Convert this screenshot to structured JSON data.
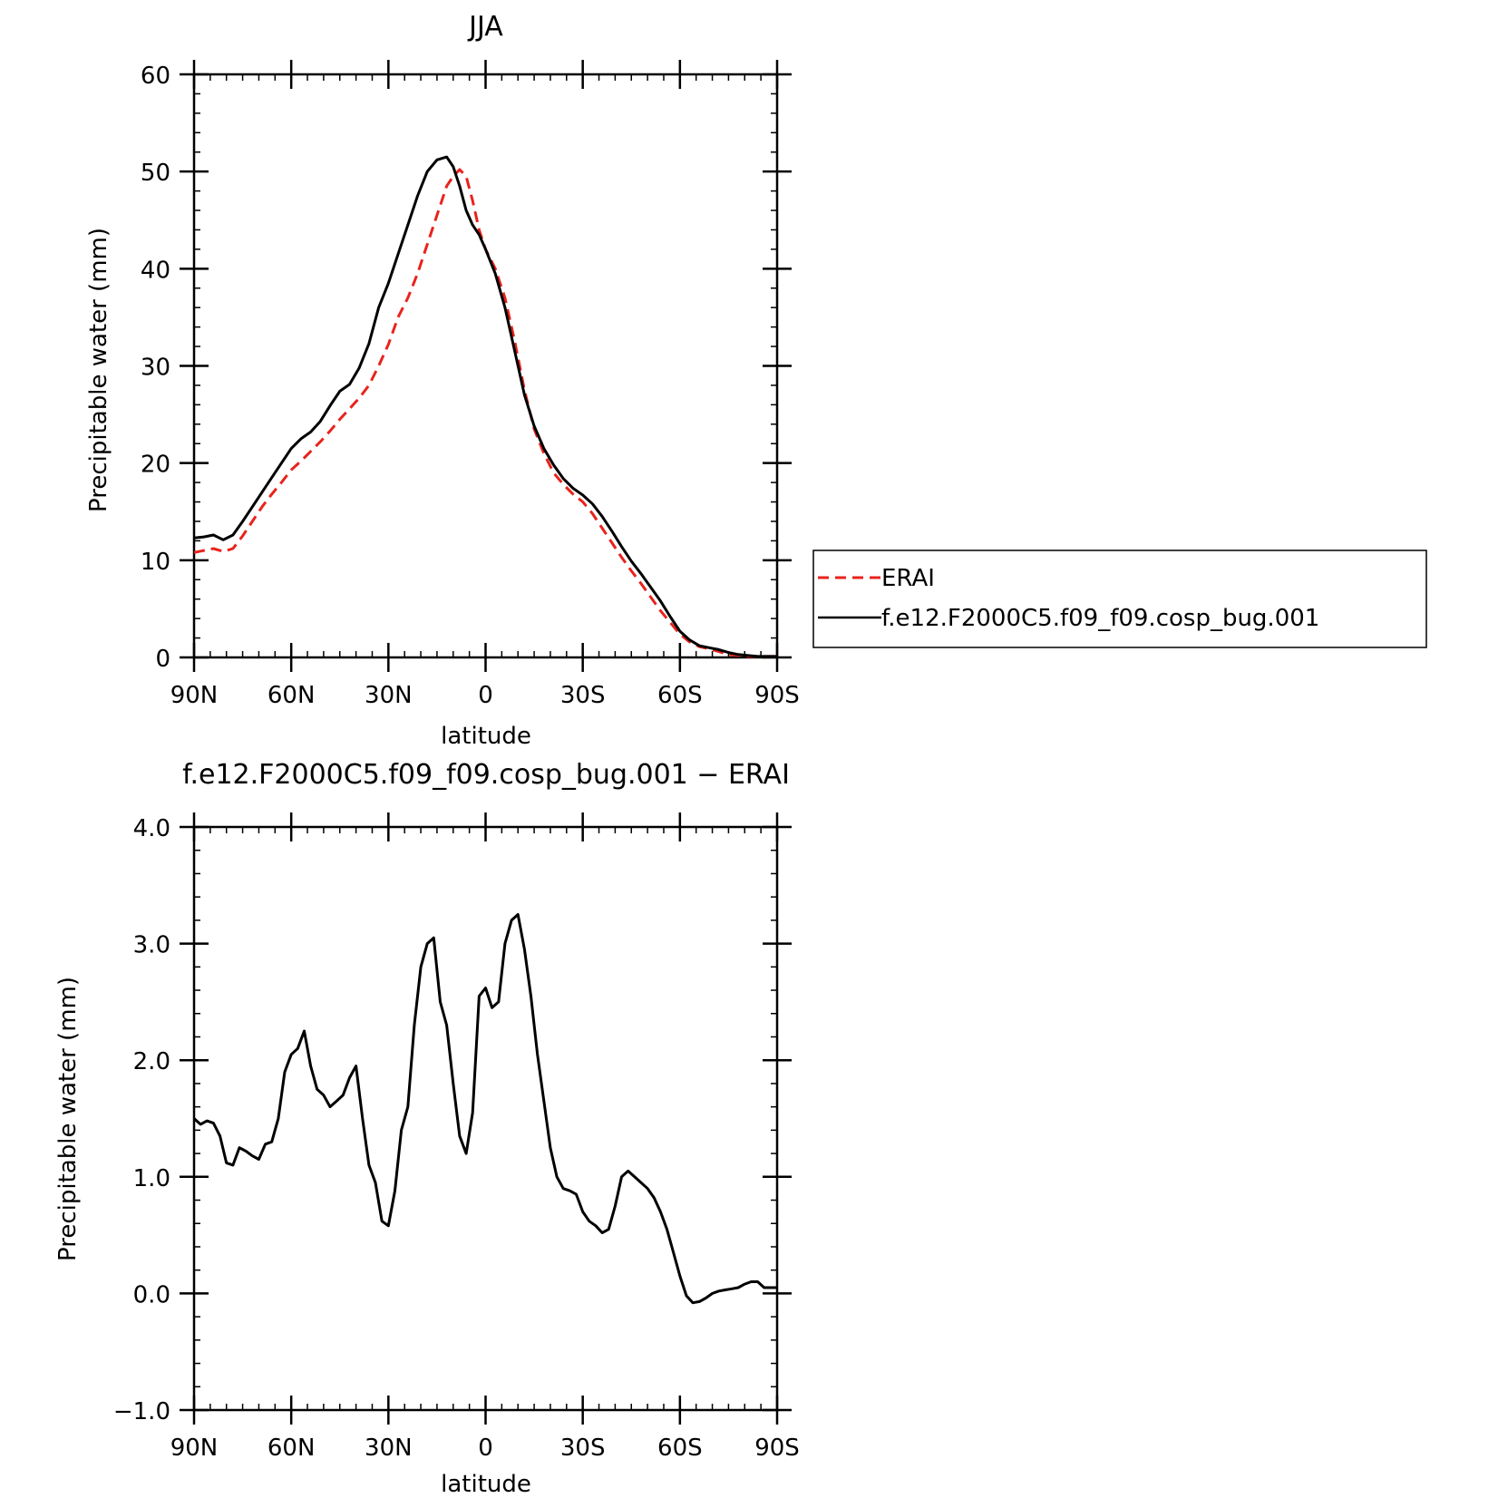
{
  "chart_data": [
    {
      "type": "line",
      "title": "JJA",
      "xlabel": "latitude",
      "ylabel": "Precipitable water (mm)",
      "xlim": [
        90,
        -90
      ],
      "ylim": [
        0,
        60
      ],
      "xticks": [
        {
          "value": 90,
          "label": "90N"
        },
        {
          "value": 60,
          "label": "60N"
        },
        {
          "value": 30,
          "label": "30N"
        },
        {
          "value": 0,
          "label": "0"
        },
        {
          "value": -30,
          "label": "30S"
        },
        {
          "value": -60,
          "label": "60S"
        },
        {
          "value": -90,
          "label": "90S"
        }
      ],
      "yticks": [
        {
          "value": 0,
          "label": "0"
        },
        {
          "value": 10,
          "label": "10"
        },
        {
          "value": 20,
          "label": "20"
        },
        {
          "value": 30,
          "label": "30"
        },
        {
          "value": 40,
          "label": "40"
        },
        {
          "value": 50,
          "label": "50"
        },
        {
          "value": 60,
          "label": "60"
        }
      ],
      "series": [
        {
          "name": "ERAI",
          "color": "#e8231c",
          "style": "dashed",
          "x": [
            90,
            87,
            84,
            81,
            78,
            75,
            72,
            69,
            66,
            63,
            60,
            57,
            54,
            51,
            48,
            45,
            42,
            39,
            36,
            33,
            30,
            27,
            24,
            21,
            18,
            15,
            12,
            10,
            8,
            6,
            4,
            2,
            0,
            -3,
            -6,
            -9,
            -12,
            -15,
            -18,
            -21,
            -24,
            -27,
            -30,
            -33,
            -36,
            -39,
            -42,
            -45,
            -48,
            -51,
            -54,
            -57,
            -60,
            -63,
            -66,
            -69,
            -72,
            -75,
            -78,
            -81,
            -84,
            -87,
            -90
          ],
          "y": [
            10.8,
            11.0,
            11.2,
            10.9,
            11.2,
            12.5,
            14.0,
            15.5,
            16.8,
            18.0,
            19.3,
            20.2,
            21.2,
            22.2,
            23.3,
            24.5,
            25.6,
            26.7,
            28.0,
            30.0,
            32.2,
            35.0,
            37.0,
            39.5,
            42.5,
            45.5,
            48.5,
            49.5,
            50.2,
            49.5,
            47.0,
            44.0,
            42.0,
            40.0,
            37.0,
            32.5,
            27.5,
            23.5,
            21.0,
            19.0,
            17.8,
            16.8,
            16.0,
            14.8,
            13.3,
            11.8,
            10.3,
            8.9,
            7.6,
            6.2,
            4.8,
            3.6,
            2.4,
            1.6,
            1.1,
            0.9,
            0.6,
            0.3,
            0.2,
            0.1,
            0.1,
            0.1,
            0.1
          ]
        },
        {
          "name": "f.e12.F2000C5.f09_f09.cosp_bug.001",
          "color": "#000000",
          "style": "solid",
          "x": [
            90,
            87,
            84,
            81,
            78,
            75,
            72,
            69,
            66,
            63,
            60,
            57,
            54,
            51,
            48,
            45,
            42,
            39,
            36,
            33,
            30,
            27,
            24,
            21,
            18,
            15,
            12,
            10,
            8,
            6,
            4,
            2,
            0,
            -3,
            -6,
            -9,
            -12,
            -15,
            -18,
            -21,
            -24,
            -27,
            -30,
            -33,
            -36,
            -39,
            -42,
            -45,
            -48,
            -51,
            -54,
            -57,
            -60,
            -63,
            -66,
            -69,
            -72,
            -75,
            -78,
            -81,
            -84,
            -87,
            -90
          ],
          "y": [
            12.3,
            12.4,
            12.6,
            12.1,
            12.6,
            14.0,
            15.5,
            17.0,
            18.5,
            20.0,
            21.5,
            22.5,
            23.2,
            24.3,
            25.9,
            27.4,
            28.1,
            29.8,
            32.3,
            36.0,
            38.5,
            41.5,
            44.5,
            47.5,
            50.0,
            51.2,
            51.5,
            50.5,
            48.5,
            46.0,
            44.5,
            43.5,
            42.0,
            39.5,
            36.0,
            31.5,
            27.0,
            23.8,
            21.5,
            19.8,
            18.4,
            17.4,
            16.7,
            15.8,
            14.5,
            13.0,
            11.4,
            9.9,
            8.6,
            7.2,
            5.8,
            4.2,
            2.7,
            1.8,
            1.2,
            1.0,
            0.8,
            0.5,
            0.3,
            0.2,
            0.1,
            0.1,
            0.1
          ]
        }
      ],
      "legend": {
        "placement": "right",
        "entries": [
          "ERAI",
          "f.e12.F2000C5.f09_f09.cosp_bug.001"
        ]
      },
      "grid": false
    },
    {
      "type": "line",
      "title": "f.e12.F2000C5.f09_f09.cosp_bug.001 − ERAI",
      "xlabel": "latitude",
      "ylabel": "Precipitable water (mm)",
      "xlim": [
        90,
        -90
      ],
      "ylim": [
        -1.0,
        4.0
      ],
      "xticks": [
        {
          "value": 90,
          "label": "90N"
        },
        {
          "value": 60,
          "label": "60N"
        },
        {
          "value": 30,
          "label": "30N"
        },
        {
          "value": 0,
          "label": "0"
        },
        {
          "value": -30,
          "label": "30S"
        },
        {
          "value": -60,
          "label": "60S"
        },
        {
          "value": -90,
          "label": "90S"
        }
      ],
      "yticks": [
        {
          "value": -1.0,
          "label": "−1.0"
        },
        {
          "value": 0.0,
          "label": "0.0"
        },
        {
          "value": 1.0,
          "label": "1.0"
        },
        {
          "value": 2.0,
          "label": "2.0"
        },
        {
          "value": 3.0,
          "label": "3.0"
        },
        {
          "value": 4.0,
          "label": "4.0"
        }
      ],
      "series": [
        {
          "color": "#000000",
          "style": "solid",
          "x": [
            90,
            88,
            86,
            84,
            82,
            80,
            78,
            76,
            74,
            72,
            70,
            68,
            66,
            64,
            62,
            60,
            58,
            56,
            54,
            52,
            50,
            48,
            46,
            44,
            42,
            40,
            38,
            36,
            34,
            32,
            30,
            28,
            26,
            24,
            22,
            20,
            18,
            16,
            14,
            12,
            10,
            8,
            6,
            4,
            2,
            0,
            -2,
            -4,
            -6,
            -8,
            -10,
            -12,
            -14,
            -16,
            -18,
            -20,
            -22,
            -24,
            -26,
            -28,
            -30,
            -32,
            -34,
            -36,
            -38,
            -40,
            -42,
            -44,
            -46,
            -48,
            -50,
            -52,
            -54,
            -56,
            -58,
            -60,
            -62,
            -64,
            -66,
            -68,
            -70,
            -72,
            -74,
            -76,
            -78,
            -80,
            -82,
            -84,
            -86,
            -88,
            -90
          ],
          "y": [
            1.5,
            1.45,
            1.48,
            1.46,
            1.35,
            1.12,
            1.1,
            1.25,
            1.22,
            1.18,
            1.15,
            1.28,
            1.3,
            1.5,
            1.9,
            2.05,
            2.1,
            2.25,
            1.95,
            1.75,
            1.7,
            1.6,
            1.65,
            1.7,
            1.85,
            1.95,
            1.5,
            1.1,
            0.95,
            0.62,
            0.58,
            0.88,
            1.4,
            1.6,
            2.3,
            2.8,
            3.0,
            3.05,
            2.5,
            2.3,
            1.8,
            1.35,
            1.2,
            1.55,
            2.55,
            2.62,
            2.45,
            2.5,
            3.0,
            3.2,
            3.25,
            2.95,
            2.55,
            2.05,
            1.65,
            1.25,
            1.0,
            0.9,
            0.88,
            0.85,
            0.7,
            0.62,
            0.58,
            0.52,
            0.55,
            0.75,
            1.0,
            1.05,
            1.0,
            0.95,
            0.9,
            0.82,
            0.7,
            0.55,
            0.35,
            0.15,
            -0.02,
            -0.08,
            -0.07,
            -0.04,
            0.0,
            0.02,
            0.03,
            0.04,
            0.05,
            0.08,
            0.1,
            0.1,
            0.05,
            0.05,
            0.05
          ]
        }
      ],
      "grid": false
    }
  ]
}
